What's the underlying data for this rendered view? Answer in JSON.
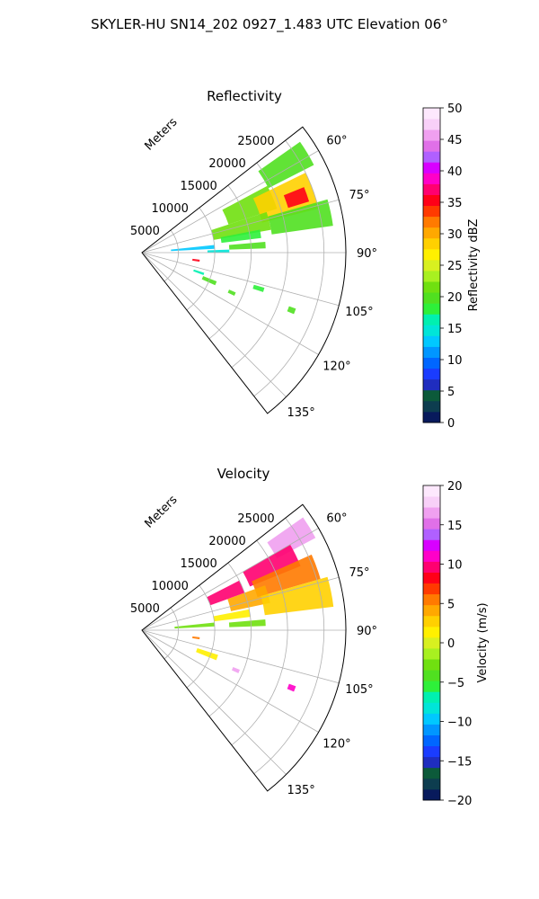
{
  "figure_title": "SKYLER-HU  SN14_202  0927_1.483 UTC Elevation 06°",
  "chart_data": [
    {
      "type": "polar-sector",
      "title": "Reflectivity",
      "range_label": "Meters",
      "range_ticks": [
        "5000",
        "10000",
        "15000",
        "20000",
        "25000"
      ],
      "range_tick_values": [
        5000,
        10000,
        15000,
        20000,
        25000
      ],
      "range_max": 28000,
      "azimuth_ticks": [
        "60°",
        "75°",
        "90°",
        "105°",
        "120°",
        "135°"
      ],
      "azimuth_tick_values": [
        60,
        75,
        90,
        105,
        120,
        135
      ],
      "azimuth_range": [
        52,
        142
      ],
      "grid": true,
      "colorbar": {
        "label": "Reflectivity dBZ",
        "min": 0,
        "max": 50,
        "ticks": [
          "0",
          "5",
          "10",
          "15",
          "20",
          "25",
          "30",
          "35",
          "40",
          "45",
          "50"
        ],
        "colors": [
          "#081a5c",
          "#0d3d4f",
          "#0c5a3a",
          "#1f2dbf",
          "#1a3cff",
          "#0066ff",
          "#0096ff",
          "#00c8ff",
          "#00e5d8",
          "#00f0b0",
          "#2ef03a",
          "#50e020",
          "#70e010",
          "#a8f020",
          "#d8f020",
          "#fff000",
          "#ffd000",
          "#ffa800",
          "#ff7a00",
          "#ff3a00",
          "#ff0018",
          "#ff0070",
          "#ff00c8",
          "#d800ff",
          "#b060ff",
          "#e070e8",
          "#f0a0f0",
          "#f8d0f8",
          "#fde8fd"
        ]
      },
      "echoes": [
        {
          "az": [
            55,
            63
          ],
          "range": [
            19500,
            26500
          ],
          "value": 20
        },
        {
          "az": [
            62,
            72
          ],
          "range": [
            12500,
            19500
          ],
          "value": 22
        },
        {
          "az": [
            64,
            76
          ],
          "range": [
            17000,
            25000
          ],
          "value": 28
        },
        {
          "az": [
            68,
            73
          ],
          "range": [
            21000,
            24000
          ],
          "value": 35
        },
        {
          "az": [
            72,
            80
          ],
          "range": [
            10000,
            18000
          ],
          "value": 21
        },
        {
          "az": [
            74,
            82
          ],
          "range": [
            18000,
            26500
          ],
          "value": 20
        },
        {
          "az": [
            79,
            83
          ],
          "range": [
            11000,
            16500
          ],
          "value": 18
        },
        {
          "az": [
            84,
            87
          ],
          "range": [
            4000,
            10000
          ],
          "value": 13
        },
        {
          "az": [
            85,
            88
          ],
          "range": [
            12000,
            17000
          ],
          "value": 20
        },
        {
          "az": [
            88,
            90
          ],
          "range": [
            9000,
            12000
          ],
          "value": 14
        },
        {
          "az": [
            97,
            99
          ],
          "range": [
            7000,
            8000
          ],
          "value": 36
        },
        {
          "az": [
            108,
            110
          ],
          "range": [
            7500,
            9000
          ],
          "value": 17
        },
        {
          "az": [
            111,
            114
          ],
          "range": [
            9000,
            11000
          ],
          "value": 20
        },
        {
          "az": [
            113,
            115
          ],
          "range": [
            13000,
            14000
          ],
          "value": 20
        },
        {
          "az": [
            106,
            108
          ],
          "range": [
            16000,
            17500
          ],
          "value": 18
        },
        {
          "az": [
            110,
            112
          ],
          "range": [
            21500,
            22500
          ],
          "value": 20
        }
      ]
    },
    {
      "type": "polar-sector",
      "title": "Velocity",
      "range_label": "Meters",
      "range_ticks": [
        "5000",
        "10000",
        "15000",
        "20000",
        "25000"
      ],
      "range_tick_values": [
        5000,
        10000,
        15000,
        20000,
        25000
      ],
      "range_max": 28000,
      "azimuth_ticks": [
        "60°",
        "75°",
        "90°",
        "105°",
        "120°",
        "135°"
      ],
      "azimuth_tick_values": [
        60,
        75,
        90,
        105,
        120,
        135
      ],
      "azimuth_range": [
        52,
        142
      ],
      "grid": true,
      "colorbar": {
        "label": "Velocity (m/s)",
        "min": -20,
        "max": 20,
        "ticks": [
          "−20",
          "−15",
          "−10",
          "−5",
          "0",
          "5",
          "10",
          "15",
          "20"
        ],
        "colors": [
          "#081a5c",
          "#0d3d4f",
          "#0c5a3a",
          "#1f2dbf",
          "#1a3cff",
          "#0066ff",
          "#0096ff",
          "#00c8ff",
          "#00e5d8",
          "#00f0b0",
          "#2ef03a",
          "#50e020",
          "#70e010",
          "#a8f020",
          "#d8f020",
          "#fff000",
          "#ffd000",
          "#ffa800",
          "#ff7a00",
          "#ff3a00",
          "#ff0018",
          "#ff0070",
          "#ff00c8",
          "#d800ff",
          "#b060ff",
          "#e070e8",
          "#f0a0f0",
          "#f8d0f8",
          "#fde8fd"
        ]
      },
      "echoes": [
        {
          "az": [
            55,
            62
          ],
          "range": [
            21000,
            27000
          ],
          "value": 17
        },
        {
          "az": [
            60,
            68
          ],
          "range": [
            16000,
            23500
          ],
          "value": 10
        },
        {
          "az": [
            66,
            74
          ],
          "range": [
            16500,
            25500
          ],
          "value": 5
        },
        {
          "az": [
            70,
            78
          ],
          "range": [
            12500,
            18000
          ],
          "value": 4
        },
        {
          "az": [
            74,
            83
          ],
          "range": [
            17000,
            26500
          ],
          "value": 3
        },
        {
          "az": [
            63,
            70
          ],
          "range": [
            10000,
            15000
          ],
          "value": 10
        },
        {
          "az": [
            79,
            83
          ],
          "range": [
            10000,
            15000
          ],
          "value": 1
        },
        {
          "az": [
            84,
            87
          ],
          "range": [
            4500,
            10000
          ],
          "value": -3
        },
        {
          "az": [
            85,
            88
          ],
          "range": [
            12000,
            17000
          ],
          "value": -3
        },
        {
          "az": [
            97,
            99
          ],
          "range": [
            7000,
            8000
          ],
          "value": 5
        },
        {
          "az": [
            108,
            112
          ],
          "range": [
            8000,
            11000
          ],
          "value": 2
        },
        {
          "az": [
            112,
            114
          ],
          "range": [
            13500,
            14500
          ],
          "value": 16
        },
        {
          "az": [
            110,
            112
          ],
          "range": [
            21500,
            22500
          ],
          "value": 11
        }
      ]
    }
  ]
}
